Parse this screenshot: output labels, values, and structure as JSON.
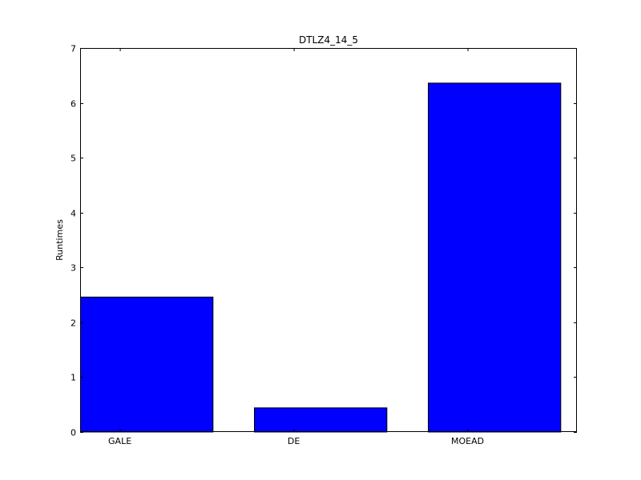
{
  "chart_data": {
    "type": "bar",
    "title": "DTLZ4_14_5",
    "xlabel": "",
    "ylabel": "Runtimes",
    "categories": [
      "GALE",
      "DE",
      "MOEAD"
    ],
    "values": [
      2.46,
      0.44,
      6.36
    ],
    "ylim": [
      0,
      7
    ],
    "yticks": [
      "0",
      "1",
      "2",
      "3",
      "4",
      "5",
      "6",
      "7"
    ],
    "grid": false,
    "bar_color": "#0000ff",
    "edge_color": "#000000"
  }
}
